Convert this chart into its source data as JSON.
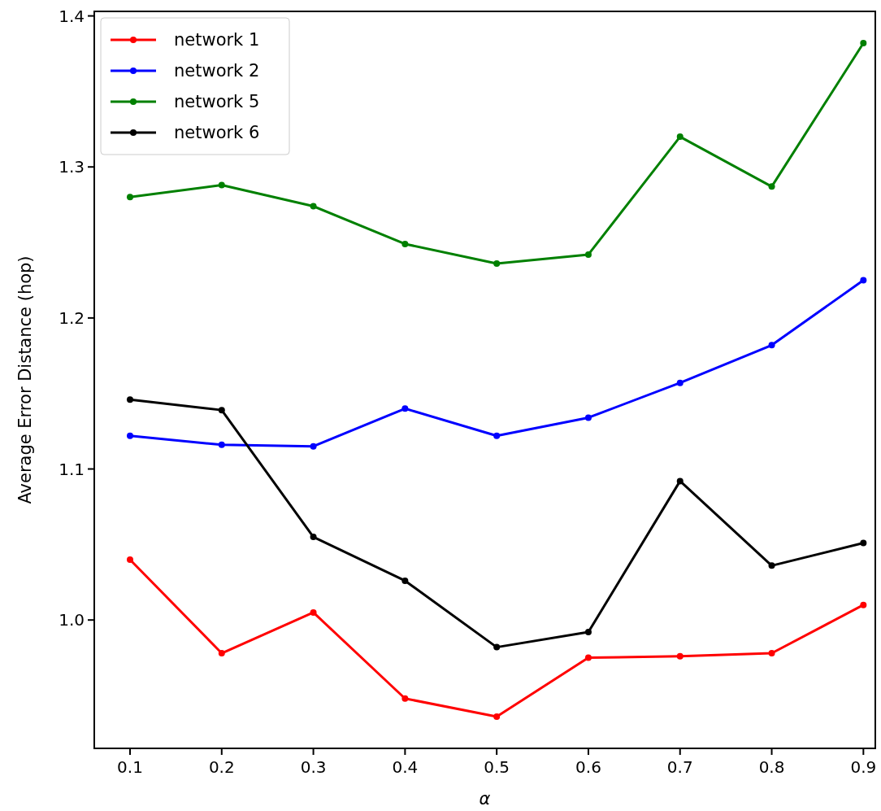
{
  "chart_data": {
    "type": "line",
    "xlabel": "α",
    "ylabel": "Average Error Distance (hop)",
    "x": [
      0.1,
      0.2,
      0.3,
      0.4,
      0.5,
      0.6,
      0.7,
      0.8,
      0.9
    ],
    "series": [
      {
        "name": "network 1",
        "color": "#ff0000",
        "values": [
          1.04,
          0.978,
          1.005,
          0.948,
          0.936,
          0.975,
          0.976,
          0.978,
          1.01
        ]
      },
      {
        "name": "network 2",
        "color": "#0000ff",
        "values": [
          1.122,
          1.116,
          1.115,
          1.14,
          1.122,
          1.134,
          1.157,
          1.182,
          1.225
        ]
      },
      {
        "name": "network 5",
        "color": "#008000",
        "values": [
          1.28,
          1.288,
          1.274,
          1.249,
          1.236,
          1.242,
          1.32,
          1.287,
          1.382
        ]
      },
      {
        "name": "network 6",
        "color": "#000000",
        "values": [
          1.146,
          1.139,
          1.055,
          1.026,
          0.982,
          0.992,
          1.092,
          1.036,
          1.051
        ]
      }
    ],
    "xlim": [
      0.061,
      0.913
    ],
    "ylim": [
      0.915,
      1.403
    ],
    "xticks": [
      0.1,
      0.2,
      0.3,
      0.4,
      0.5,
      0.6,
      0.7,
      0.8,
      0.9
    ],
    "yticks": [
      {
        "value": 1,
        "label": "1.0"
      },
      1.1,
      1.2,
      1.3,
      1.4
    ],
    "legend": "top left",
    "marker": "circle",
    "line_style": "solid",
    "grid": false
  }
}
